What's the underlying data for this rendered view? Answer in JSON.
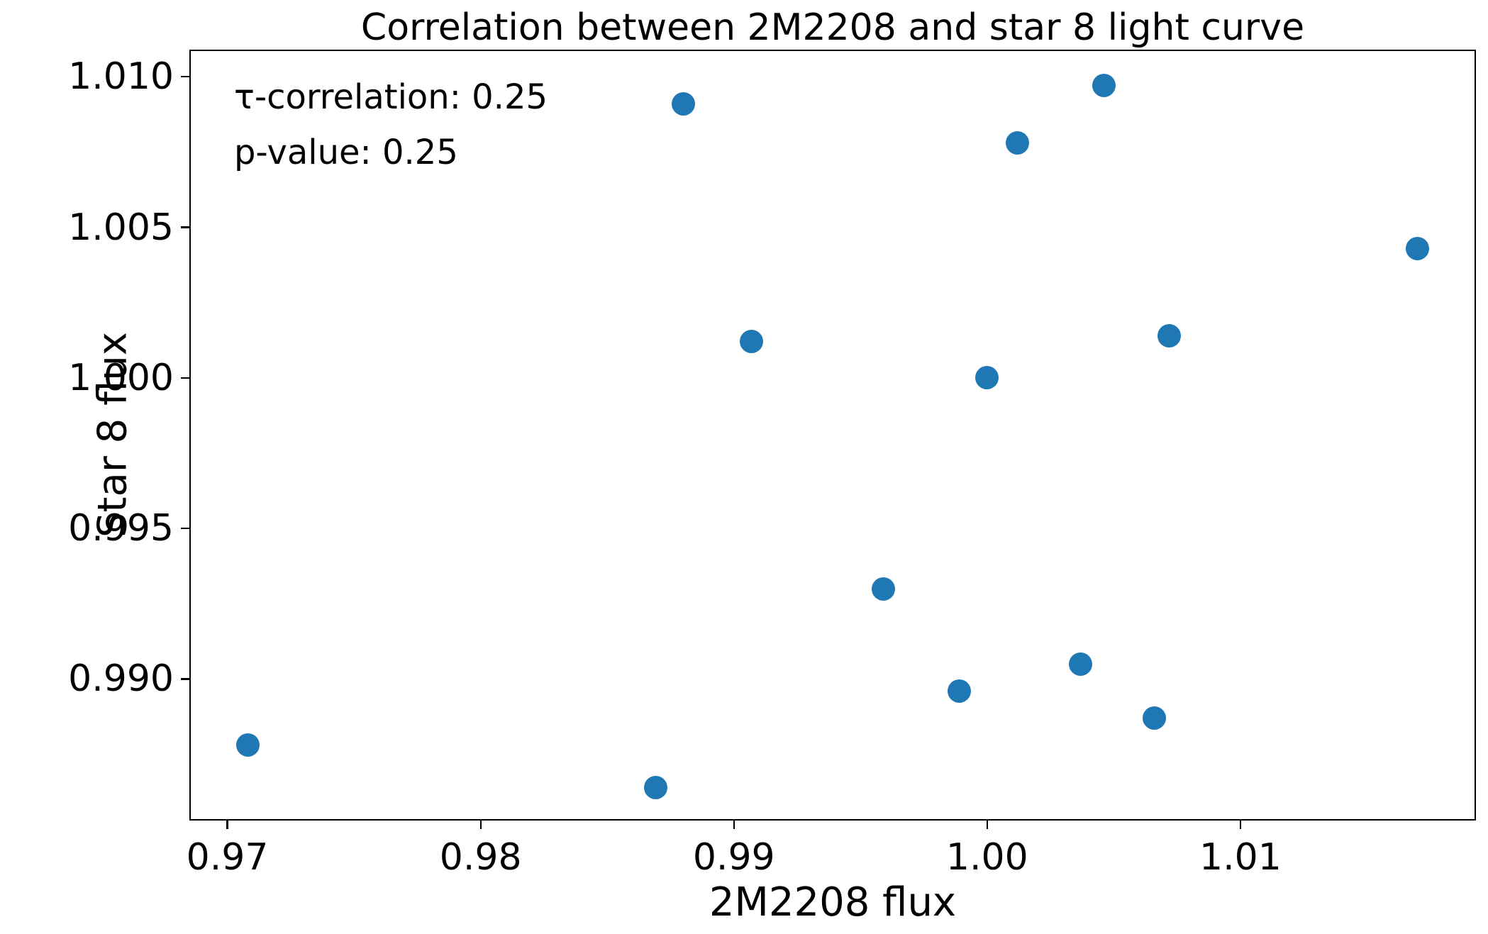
{
  "chart_data": {
    "type": "scatter",
    "title": "Correlation between 2M2208 and star 8 light curve",
    "xlabel": "2M2208 flux",
    "ylabel": "Star 8 flux",
    "xlim": [
      0.9685,
      1.0193
    ],
    "ylim": [
      0.9853,
      1.0109
    ],
    "grid": false,
    "xticks": [
      0.97,
      0.98,
      0.99,
      1.0,
      1.01
    ],
    "xtick_labels": [
      "0.97",
      "0.98",
      "0.99",
      "1.00",
      "1.01"
    ],
    "yticks": [
      0.99,
      0.995,
      1.0,
      1.005,
      1.01
    ],
    "ytick_labels": [
      "0.990",
      "0.995",
      "1.000",
      "1.005",
      "1.010"
    ],
    "marker_color": "#1f77b4",
    "marker_diameter_px": 33,
    "points": [
      {
        "x": 0.988,
        "y": 1.0091
      },
      {
        "x": 1.0046,
        "y": 1.0097
      },
      {
        "x": 1.0012,
        "y": 1.0078
      },
      {
        "x": 1.017,
        "y": 1.0043
      },
      {
        "x": 0.9907,
        "y": 1.0012
      },
      {
        "x": 1.0072,
        "y": 1.0014
      },
      {
        "x": 1.0,
        "y": 1.0
      },
      {
        "x": 0.9959,
        "y": 0.993
      },
      {
        "x": 1.0037,
        "y": 0.9905
      },
      {
        "x": 0.9989,
        "y": 0.9896
      },
      {
        "x": 1.0066,
        "y": 0.9887
      },
      {
        "x": 0.9708,
        "y": 0.9878
      },
      {
        "x": 0.9869,
        "y": 0.9864
      }
    ],
    "annotations": [
      {
        "text": "τ-correlation: 0.25",
        "ax_frac_x": 0.0347,
        "ax_frac_y": 0.0616
      },
      {
        "text": "p-value: 0.25",
        "ax_frac_x": 0.0347,
        "ax_frac_y": 0.1334
      }
    ],
    "legend": null
  }
}
